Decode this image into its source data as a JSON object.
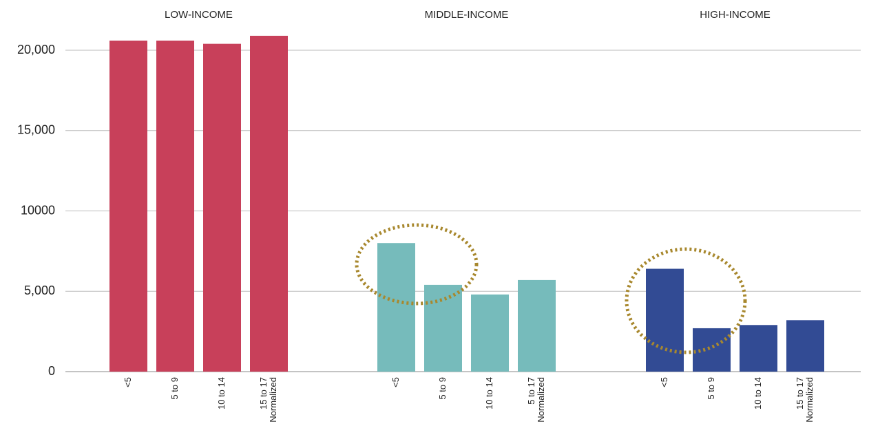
{
  "chart_data": {
    "type": "bar",
    "ylim": [
      0,
      20000
    ],
    "yticks": [
      0,
      {
        "value": 5000,
        "label": "5,000"
      },
      10000,
      {
        "value": 15000,
        "label": "15,000"
      },
      {
        "value": 20000,
        "label": "20,000"
      }
    ],
    "grid": true,
    "groups": [
      {
        "name": "LOW-INCOME",
        "color": "#c8405a",
        "categories": [
          [
            "<5"
          ],
          [
            "5 to 9"
          ],
          [
            "10 to 14"
          ],
          [
            "15 to 17",
            "Normalized"
          ]
        ],
        "values": [
          20600,
          20600,
          20400,
          20900
        ]
      },
      {
        "name": "MIDDLE-INCOME",
        "color": "#76bbbb",
        "categories": [
          [
            "<5"
          ],
          [
            "5 to 9"
          ],
          [
            "10 to 14"
          ],
          [
            "5 to 17",
            "Normalized"
          ]
        ],
        "values": [
          8000,
          5400,
          4800,
          5700
        ]
      },
      {
        "name": "HIGH-INCOME",
        "color": "#324b94",
        "categories": [
          [
            "<5"
          ],
          [
            "5 to 9"
          ],
          [
            "10 to 14"
          ],
          [
            "15 to 17",
            "Normalized"
          ]
        ],
        "values": [
          6400,
          2700,
          2900,
          3200
        ]
      }
    ]
  }
}
